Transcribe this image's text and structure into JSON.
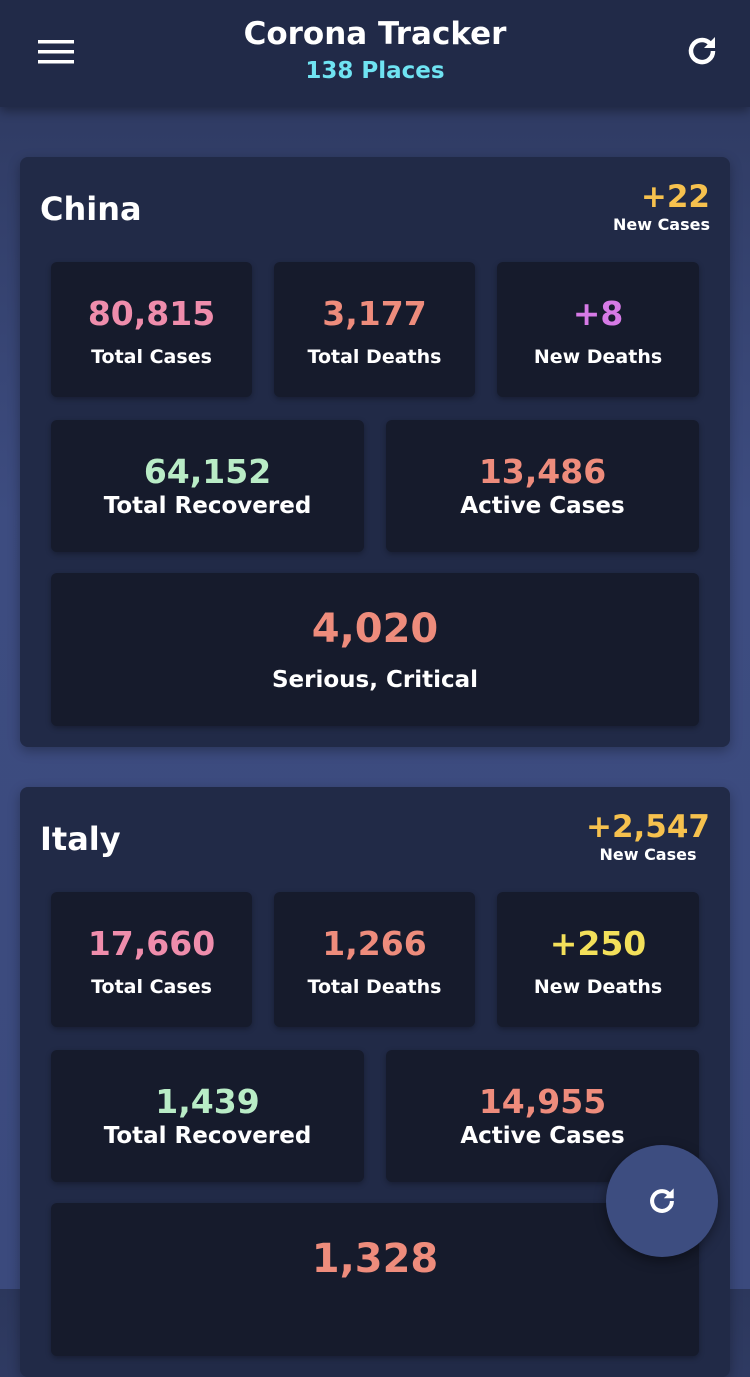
{
  "header": {
    "title": "Corona Tracker",
    "subtitle": "138 Places"
  },
  "countries": [
    {
      "name": "China",
      "new_cases": "+22",
      "new_cases_label": "New Cases",
      "stats": [
        {
          "value": "80,815",
          "label": "Total Cases"
        },
        {
          "value": "3,177",
          "label": "Total Deaths"
        },
        {
          "value": "+8",
          "label": "New Deaths"
        },
        {
          "value": "64,152",
          "label": "Total Recovered"
        },
        {
          "value": "13,486",
          "label": "Active Cases"
        },
        {
          "value": "4,020",
          "label": "Serious, Critical"
        }
      ]
    },
    {
      "name": "Italy",
      "new_cases": "+2,547",
      "new_cases_label": "New Cases",
      "stats": [
        {
          "value": "17,660",
          "label": "Total Cases"
        },
        {
          "value": "1,266",
          "label": "Total Deaths"
        },
        {
          "value": "+250",
          "label": "New Deaths"
        },
        {
          "value": "1,439",
          "label": "Total Recovered"
        },
        {
          "value": "14,955",
          "label": "Active Cases"
        },
        {
          "value": "1,328"
        }
      ]
    }
  ]
}
